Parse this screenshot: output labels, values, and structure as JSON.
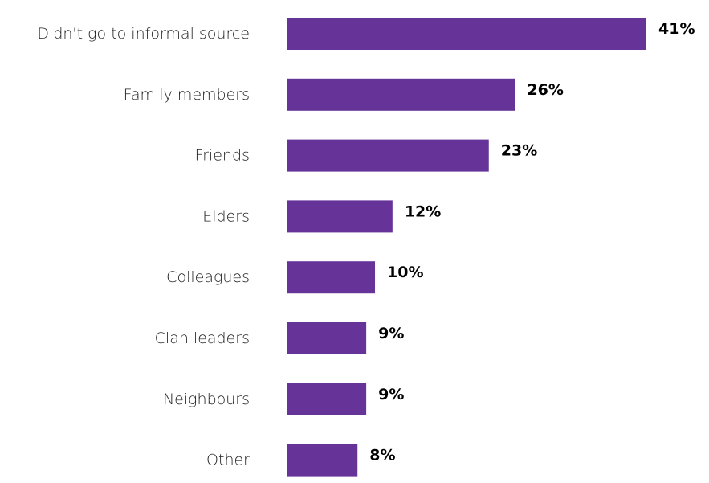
{
  "chart_data": {
    "type": "bar",
    "orientation": "horizontal",
    "categories": [
      "Didn't go to informal source",
      "Family members",
      "Friends",
      "Elders",
      "Colleagues",
      "Clan leaders",
      "Neighbours",
      "Other"
    ],
    "values": [
      41,
      26,
      23,
      12,
      10,
      9,
      9,
      8
    ],
    "value_labels": [
      "41%",
      "26%",
      "23%",
      "12%",
      "10%",
      "9%",
      "9%",
      "8%"
    ],
    "value_unit": "%",
    "xlim": [
      0,
      41
    ],
    "grid": false,
    "legend": "none",
    "bar_color": "#663399",
    "axis_color": "#d9d9d9"
  }
}
